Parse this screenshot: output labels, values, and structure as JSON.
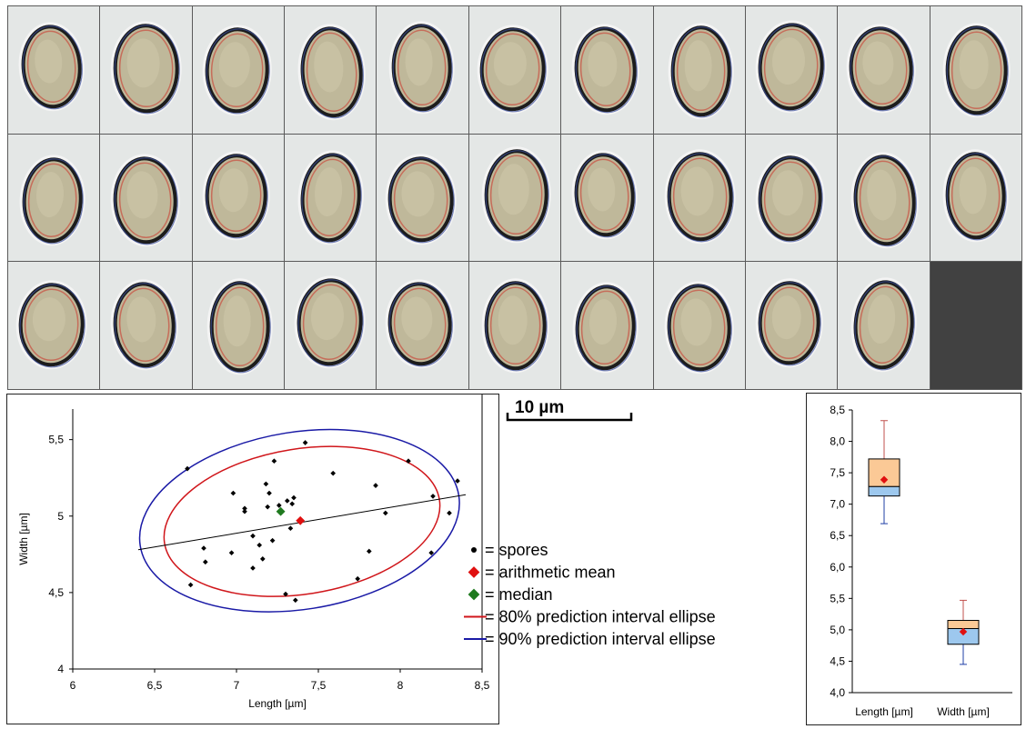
{
  "microscopy": {
    "rows": [
      11,
      11,
      10
    ],
    "colors": {
      "background": "#e4e7e6",
      "empty_cell": "#414141",
      "spore_fill": "#bfb89a",
      "spore_wall": "#1c1c1c",
      "halo_red": "#c85a4a",
      "halo_blue": "#3a4f9c"
    }
  },
  "scale_bar": {
    "label": "10 µm"
  },
  "chart_data": [
    {
      "type": "scatter",
      "xlabel": "Length [µm]",
      "ylabel": "Width [µm]",
      "xlim": [
        6,
        8.5
      ],
      "ylim": [
        4,
        5.7
      ],
      "xticks": [
        "6",
        "6,5",
        "7",
        "7,5",
        "8",
        "8,5"
      ],
      "yticks": [
        "4",
        "4,5",
        "5",
        "5,5"
      ],
      "grid": false,
      "points": [
        {
          "x": 6.7,
          "y": 5.31
        },
        {
          "x": 6.72,
          "y": 4.55
        },
        {
          "x": 6.8,
          "y": 4.79
        },
        {
          "x": 6.81,
          "y": 4.7
        },
        {
          "x": 6.97,
          "y": 4.76
        },
        {
          "x": 6.98,
          "y": 5.15
        },
        {
          "x": 7.05,
          "y": 5.05
        },
        {
          "x": 7.05,
          "y": 5.03
        },
        {
          "x": 7.1,
          "y": 4.87
        },
        {
          "x": 7.1,
          "y": 4.66
        },
        {
          "x": 7.14,
          "y": 4.81
        },
        {
          "x": 7.16,
          "y": 4.72
        },
        {
          "x": 7.18,
          "y": 5.21
        },
        {
          "x": 7.19,
          "y": 5.06
        },
        {
          "x": 7.2,
          "y": 5.15
        },
        {
          "x": 7.22,
          "y": 4.84
        },
        {
          "x": 7.23,
          "y": 5.36
        },
        {
          "x": 7.26,
          "y": 5.07
        },
        {
          "x": 7.3,
          "y": 4.49
        },
        {
          "x": 7.31,
          "y": 5.1
        },
        {
          "x": 7.33,
          "y": 4.92
        },
        {
          "x": 7.34,
          "y": 5.08
        },
        {
          "x": 7.35,
          "y": 5.12
        },
        {
          "x": 7.36,
          "y": 4.45
        },
        {
          "x": 7.42,
          "y": 5.48
        },
        {
          "x": 7.59,
          "y": 5.28
        },
        {
          "x": 7.74,
          "y": 4.59
        },
        {
          "x": 7.81,
          "y": 4.77
        },
        {
          "x": 7.85,
          "y": 5.2
        },
        {
          "x": 7.91,
          "y": 5.02
        },
        {
          "x": 8.05,
          "y": 5.36
        },
        {
          "x": 8.19,
          "y": 4.76
        },
        {
          "x": 8.2,
          "y": 5.13
        },
        {
          "x": 8.3,
          "y": 5.02
        },
        {
          "x": 8.35,
          "y": 5.23
        }
      ],
      "mean": {
        "x": 7.39,
        "y": 4.97
      },
      "median": {
        "x": 7.27,
        "y": 5.03
      },
      "regression": {
        "x": [
          6.4,
          8.4
        ],
        "y": [
          4.78,
          5.14
        ]
      },
      "ellipse80": {
        "x_range": [
          6.55,
          8.25
        ],
        "y_range": [
          4.49,
          5.44
        ],
        "angle_deg": -9
      },
      "ellipse90": {
        "x_range": [
          6.4,
          8.37
        ],
        "y_range": [
          4.39,
          5.55
        ],
        "angle_deg": -9
      },
      "legend": [
        {
          "symbol": "dot",
          "color": "#000000",
          "label": "= spores"
        },
        {
          "symbol": "diamond",
          "color": "#e01010",
          "label": "= arithmetic mean"
        },
        {
          "symbol": "diamond",
          "color": "#1f7a1f",
          "label": "= median"
        },
        {
          "symbol": "line",
          "color": "#d0161b",
          "label": "= 80% prediction interval ellipse"
        },
        {
          "symbol": "line",
          "color": "#1a1aa6",
          "label": "= 90% prediction interval ellipse"
        }
      ],
      "colors": {
        "points": "#000000",
        "mean": "#e01010",
        "median": "#1f7a1f",
        "ellipse80": "#d0161b",
        "ellipse90": "#1a1aa6",
        "regression": "#000000"
      }
    },
    {
      "type": "box",
      "ylim": [
        4.0,
        8.5
      ],
      "yticks": [
        "4,0",
        "4,5",
        "5,0",
        "5,5",
        "6,0",
        "6,5",
        "7,0",
        "7,5",
        "8,0",
        "8,5"
      ],
      "categories": [
        "Length [µm]",
        "Width [µm]"
      ],
      "boxes": [
        {
          "name": "Length [µm]",
          "min": 6.69,
          "q1": 7.13,
          "median": 7.28,
          "q3": 7.72,
          "max": 8.33,
          "mean": 7.39,
          "upper_color": "#fbc996",
          "lower_color": "#9dc8ee",
          "whisker_upper": "#c0504d",
          "whisker_lower": "#1f3fa6"
        },
        {
          "name": "Width [µm]",
          "min": 4.45,
          "q1": 4.77,
          "median": 5.02,
          "q3": 5.15,
          "max": 5.47,
          "mean": 4.97,
          "upper_color": "#fbc996",
          "lower_color": "#9dc8ee",
          "whisker_upper": "#c0504d",
          "whisker_lower": "#1f3fa6"
        }
      ]
    }
  ]
}
